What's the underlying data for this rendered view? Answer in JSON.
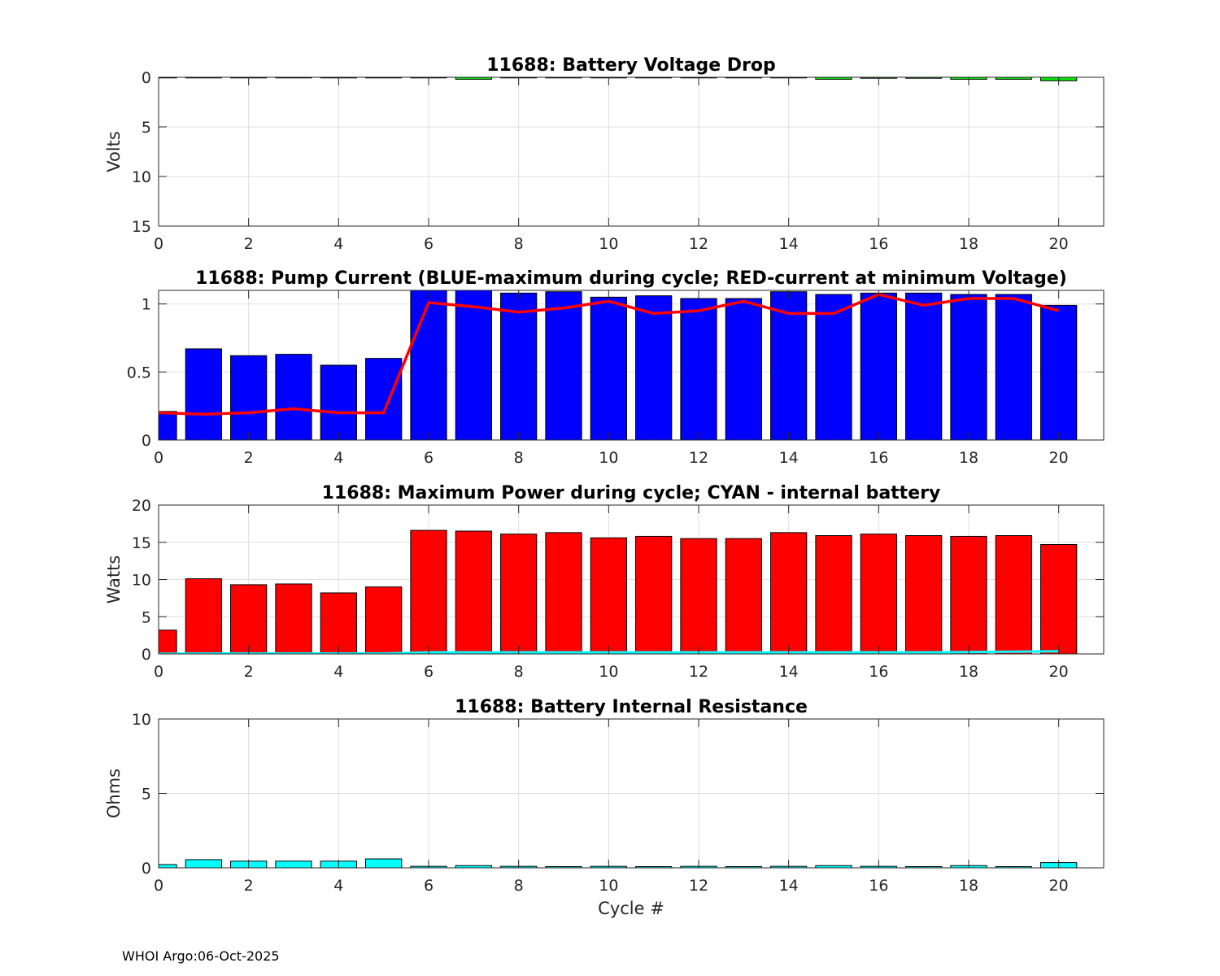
{
  "footer": "WHOI Argo:06-Oct-2025",
  "chart_data": [
    {
      "type": "bar",
      "title": "11688: Battery Voltage Drop",
      "ylabel": "Volts",
      "xlabel": "",
      "xlim": [
        0,
        21
      ],
      "ylim": [
        0,
        15
      ],
      "yreverse": true,
      "xticks": [
        0,
        2,
        4,
        6,
        8,
        10,
        12,
        14,
        16,
        18,
        20
      ],
      "yticks": [
        0,
        5,
        10,
        15
      ],
      "grid": true,
      "x": [
        0,
        1,
        2,
        3,
        4,
        5,
        6,
        7,
        8,
        9,
        10,
        11,
        12,
        13,
        14,
        15,
        16,
        17,
        18,
        19,
        20
      ],
      "series": [
        {
          "color": "#00e600",
          "values": [
            0.02,
            0.05,
            0.05,
            0.05,
            0.05,
            0.05,
            0.05,
            0.2,
            0.05,
            0.05,
            0.05,
            0.05,
            0.05,
            0.05,
            0.05,
            0.2,
            0.1,
            0.1,
            0.2,
            0.2,
            0.35
          ]
        }
      ]
    },
    {
      "type": "bar",
      "title": "11688: Pump Current (BLUE-maximum during cycle; RED-current at minimum Voltage)",
      "ylabel": "",
      "xlabel": "",
      "xlim": [
        0,
        21
      ],
      "ylim": [
        0,
        1.1
      ],
      "xticks": [
        0,
        2,
        4,
        6,
        8,
        10,
        12,
        14,
        16,
        18,
        20
      ],
      "yticks": [
        0,
        0.5,
        1
      ],
      "ytick_labels": [
        "0",
        "0.5",
        "1"
      ],
      "grid": true,
      "x": [
        0,
        1,
        2,
        3,
        4,
        5,
        6,
        7,
        8,
        9,
        10,
        11,
        12,
        13,
        14,
        15,
        16,
        17,
        18,
        19,
        20
      ],
      "series": [
        {
          "color": "#0000ff",
          "values": [
            0.21,
            0.67,
            0.62,
            0.63,
            0.55,
            0.6,
            1.12,
            1.11,
            1.08,
            1.09,
            1.05,
            1.06,
            1.04,
            1.04,
            1.09,
            1.07,
            1.08,
            1.08,
            1.07,
            1.07,
            0.99
          ]
        }
      ],
      "lines": [
        {
          "color": "#ff0000",
          "values": [
            0.2,
            0.19,
            0.2,
            0.23,
            0.2,
            0.2,
            1.01,
            0.98,
            0.94,
            0.97,
            1.02,
            0.93,
            0.95,
            1.02,
            0.93,
            0.93,
            1.07,
            0.99,
            1.04,
            1.04,
            0.95
          ]
        }
      ]
    },
    {
      "type": "bar",
      "title": "11688: Maximum Power during cycle; CYAN - internal battery",
      "ylabel": "Watts",
      "xlabel": "",
      "xlim": [
        0,
        21
      ],
      "ylim": [
        0,
        20
      ],
      "xticks": [
        0,
        2,
        4,
        6,
        8,
        10,
        12,
        14,
        16,
        18,
        20
      ],
      "yticks": [
        0,
        5,
        10,
        15,
        20
      ],
      "grid": true,
      "x": [
        0,
        1,
        2,
        3,
        4,
        5,
        6,
        7,
        8,
        9,
        10,
        11,
        12,
        13,
        14,
        15,
        16,
        17,
        18,
        19,
        20
      ],
      "series": [
        {
          "color": "#ff0000",
          "values": [
            3.2,
            10.1,
            9.3,
            9.4,
            8.2,
            9.0,
            16.6,
            16.5,
            16.1,
            16.3,
            15.6,
            15.8,
            15.5,
            15.5,
            16.3,
            15.9,
            16.1,
            15.9,
            15.8,
            15.9,
            14.7
          ]
        }
      ],
      "lines": [
        {
          "color": "#00ffff",
          "values": [
            0.02,
            0.05,
            0.05,
            0.05,
            0.05,
            0.05,
            0.2,
            0.2,
            0.2,
            0.2,
            0.2,
            0.2,
            0.2,
            0.2,
            0.2,
            0.2,
            0.2,
            0.2,
            0.25,
            0.3,
            0.35
          ]
        }
      ]
    },
    {
      "type": "bar",
      "title": "11688: Battery Internal Resistance",
      "ylabel": "Ohms",
      "xlabel": "Cycle #",
      "xlim": [
        0,
        21
      ],
      "ylim": [
        0,
        10
      ],
      "xticks": [
        0,
        2,
        4,
        6,
        8,
        10,
        12,
        14,
        16,
        18,
        20
      ],
      "yticks": [
        0,
        5,
        10
      ],
      "grid": true,
      "x": [
        0,
        1,
        2,
        3,
        4,
        5,
        6,
        7,
        8,
        9,
        10,
        11,
        12,
        13,
        14,
        15,
        16,
        17,
        18,
        19,
        20
      ],
      "series": [
        {
          "color": "#00ffff",
          "values": [
            0.22,
            0.55,
            0.45,
            0.45,
            0.45,
            0.6,
            0.1,
            0.15,
            0.1,
            0.08,
            0.1,
            0.08,
            0.1,
            0.08,
            0.1,
            0.15,
            0.1,
            0.08,
            0.15,
            0.08,
            0.35
          ]
        }
      ]
    }
  ]
}
